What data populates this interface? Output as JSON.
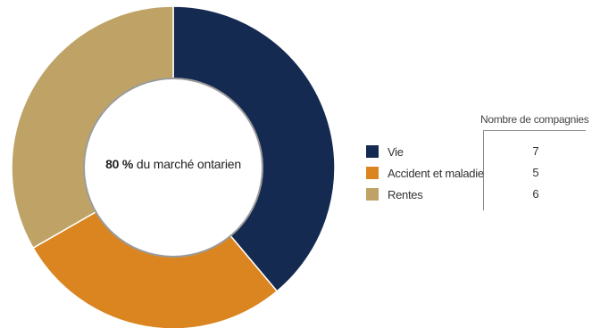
{
  "chart_data": {
    "type": "pie",
    "variant": "donut",
    "center_label": {
      "value": "80 %",
      "text": "du marché ontarien"
    },
    "table_header": "Nombre de compagnies",
    "slices": [
      {
        "label": "Vie",
        "value": 38.9,
        "count": "7",
        "color": "#152a50"
      },
      {
        "label": "Accident et maladie",
        "value": 27.8,
        "count": "5",
        "color": "#db8521"
      },
      {
        "label": "Rentes",
        "value": 33.3,
        "count": "6",
        "color": "#bfa366"
      }
    ],
    "start_angle": "top",
    "direction": "clockwise",
    "legend_position": "right"
  }
}
